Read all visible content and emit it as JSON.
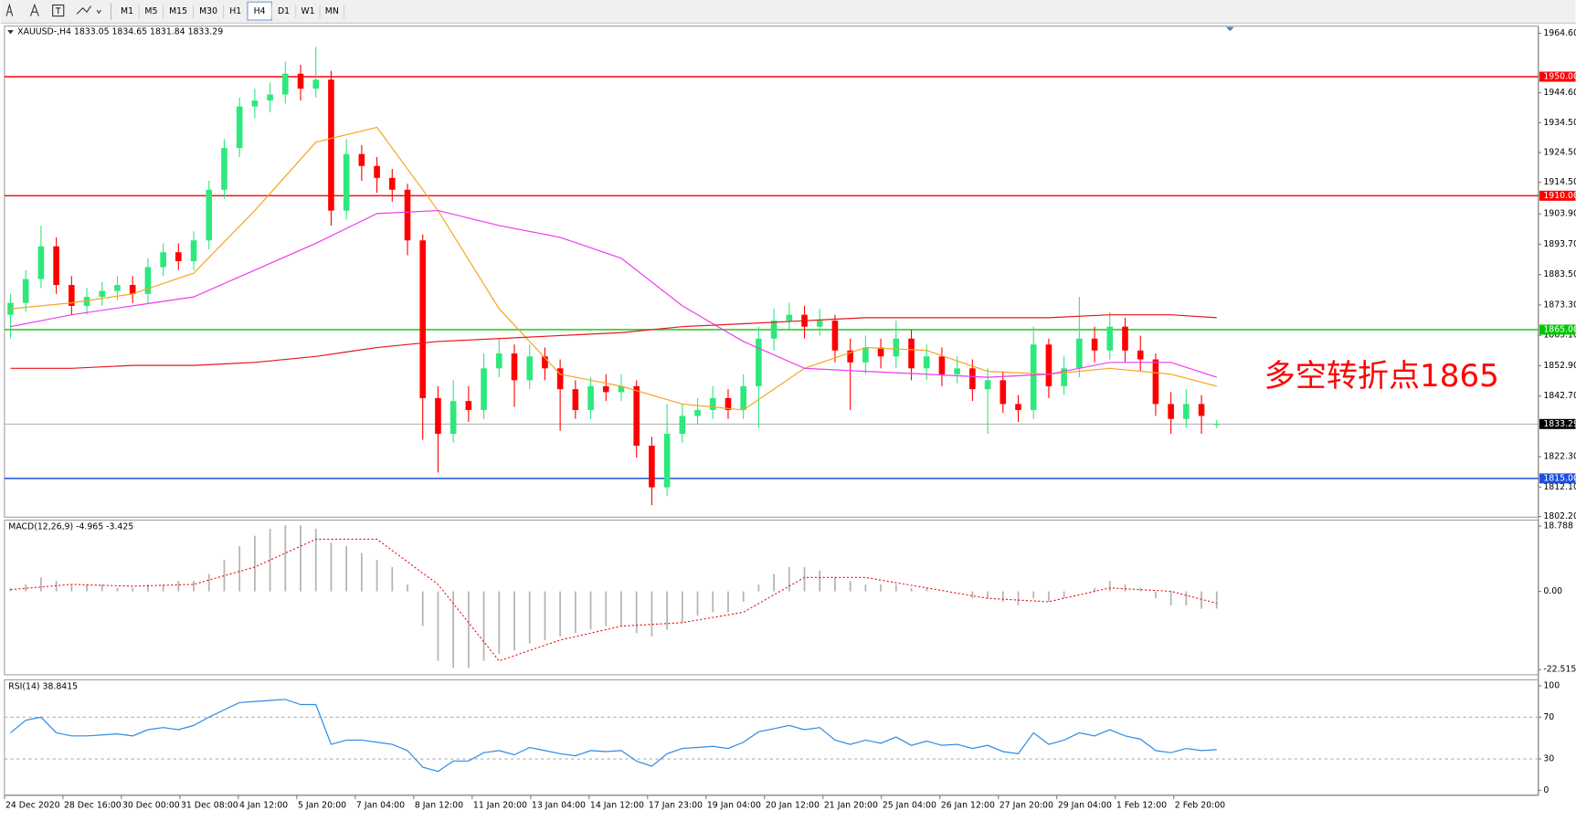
{
  "toolbar": {
    "timeframes": [
      "M1",
      "M5",
      "M15",
      "M30",
      "H1",
      "H4",
      "D1",
      "W1",
      "MN"
    ],
    "active": "H4"
  },
  "chart_data": [
    {
      "type": "candlestick",
      "title": "XAUUSD-,H4  1833.05 1834.65 1831.84 1833.29",
      "open": [
        1870,
        1874,
        1882,
        1893,
        1880,
        1873,
        1876,
        1878,
        1880,
        1877,
        1886,
        1891,
        1888,
        1895,
        1912,
        1926,
        1940,
        1942,
        1944,
        1951,
        1946,
        1949,
        1905,
        1924,
        1920,
        1916,
        1912,
        1895,
        1842,
        1830,
        1841,
        1838,
        1852,
        1857,
        1848,
        1856,
        1852,
        1845,
        1838,
        1846,
        1844,
        1846,
        1826,
        1812,
        1830,
        1836,
        1838,
        1842,
        1838,
        1846,
        1862,
        1868,
        1870,
        1866,
        1868,
        1858,
        1854,
        1859,
        1856,
        1862,
        1852,
        1856,
        1850,
        1852,
        1845,
        1848,
        1840,
        1838,
        1860,
        1846,
        1852,
        1862,
        1858,
        1866,
        1858,
        1855,
        1840,
        1835,
        1840,
        1833.05
      ],
      "high": [
        1877,
        1885,
        1900,
        1896,
        1883,
        1879,
        1881,
        1883,
        1883,
        1889,
        1894,
        1894,
        1898,
        1915,
        1929,
        1943,
        1946,
        1948,
        1955,
        1954,
        1960,
        1952,
        1929,
        1927,
        1923,
        1919,
        1914,
        1897,
        1846,
        1848,
        1846,
        1857,
        1862,
        1860,
        1860,
        1859,
        1855,
        1848,
        1849,
        1850,
        1850,
        1848,
        1829,
        1840,
        1840,
        1842,
        1846,
        1845,
        1850,
        1866,
        1872,
        1874,
        1873,
        1872,
        1870,
        1862,
        1863,
        1862,
        1868,
        1865,
        1860,
        1859,
        1856,
        1855,
        1852,
        1851,
        1843,
        1866,
        1862,
        1856,
        1876,
        1866,
        1871,
        1869,
        1863,
        1857,
        1844,
        1845,
        1843,
        1834.65
      ],
      "low": [
        1862,
        1871,
        1879,
        1877,
        1870,
        1870,
        1873,
        1875,
        1874,
        1874,
        1883,
        1885,
        1885,
        1892,
        1909,
        1923,
        1936,
        1938,
        1941,
        1942,
        1943,
        1900,
        1902,
        1915,
        1911,
        1908,
        1890,
        1828,
        1817,
        1827,
        1834,
        1835,
        1849,
        1839,
        1845,
        1848,
        1831,
        1835,
        1835,
        1841,
        1841,
        1822,
        1806,
        1809,
        1827,
        1833,
        1835,
        1835,
        1835,
        1832,
        1858,
        1865,
        1862,
        1863,
        1854,
        1838,
        1850,
        1852,
        1852,
        1848,
        1848,
        1846,
        1847,
        1841,
        1830,
        1837,
        1834,
        1835,
        1842,
        1843,
        1849,
        1854,
        1855,
        1854,
        1851,
        1836,
        1830,
        1832,
        1830,
        1831.84
      ],
      "close": [
        1874,
        1882,
        1893,
        1880,
        1873,
        1876,
        1878,
        1880,
        1877,
        1886,
        1891,
        1888,
        1895,
        1912,
        1926,
        1940,
        1942,
        1944,
        1951,
        1946,
        1949,
        1905,
        1924,
        1920,
        1916,
        1912,
        1895,
        1842,
        1830,
        1841,
        1838,
        1852,
        1857,
        1848,
        1856,
        1852,
        1845,
        1838,
        1846,
        1844,
        1846,
        1826,
        1812,
        1830,
        1836,
        1838,
        1842,
        1838,
        1846,
        1862,
        1868,
        1870,
        1866,
        1868,
        1858,
        1854,
        1859,
        1856,
        1862,
        1852,
        1856,
        1850,
        1852,
        1845,
        1848,
        1840,
        1838,
        1860,
        1846,
        1852,
        1862,
        1858,
        1866,
        1858,
        1855,
        1840,
        1835,
        1840,
        1836,
        1833.29
      ],
      "up_color": "#2de87c",
      "down_color": "#ff0000",
      "ma_x": [
        0,
        4,
        8,
        12,
        16,
        20,
        24,
        28,
        32,
        36,
        40,
        44,
        48,
        52,
        56,
        60,
        64,
        68,
        72,
        76,
        79
      ],
      "moving_averages": [
        {
          "color": "#f5a623",
          "values": [
            1872,
            1874,
            1877,
            1884,
            1905,
            1928,
            1933,
            1905,
            1872,
            1850,
            1846,
            1840,
            1838,
            1852,
            1859,
            1858,
            1851,
            1850,
            1852,
            1850,
            1846
          ]
        },
        {
          "color": "#ee3cee",
          "values": [
            1866,
            1870,
            1873,
            1876,
            1885,
            1894,
            1904,
            1905,
            1900,
            1896,
            1889,
            1873,
            1861,
            1852,
            1851,
            1850,
            1849,
            1850,
            1854,
            1854,
            1849
          ]
        },
        {
          "color": "#e8161b",
          "values": [
            1852,
            1852,
            1853,
            1853,
            1854,
            1856,
            1859,
            1861,
            1862,
            1863,
            1864,
            1866,
            1867,
            1868,
            1869,
            1869,
            1869,
            1869,
            1870,
            1870,
            1869
          ]
        }
      ],
      "levels": [
        {
          "value": 1950,
          "label": "1950.00",
          "color": "#ff0000"
        },
        {
          "value": 1910,
          "label": "1910.00",
          "color": "#ff0000"
        },
        {
          "value": 1865,
          "label": "1865.00",
          "color": "#00c800"
        },
        {
          "value": 1815,
          "label": "1815.00",
          "color": "#1e50dc"
        }
      ],
      "current_price": 1833.29,
      "annotation": {
        "text": "多空转折点1865",
        "color": "#ff0000"
      },
      "ylim": [
        1802,
        1967
      ],
      "yticks": [
        {
          "value": 1964.6,
          "label": "1964.60"
        },
        {
          "value": 1944.6,
          "label": "1944.60"
        },
        {
          "value": 1934.5,
          "label": "1934.50"
        },
        {
          "value": 1924.5,
          "label": "1924.50"
        },
        {
          "value": 1914.5,
          "label": "1914.50"
        },
        {
          "value": 1903.9,
          "label": "1903.90"
        },
        {
          "value": 1893.7,
          "label": "1893.70"
        },
        {
          "value": 1883.5,
          "label": "1883.50"
        },
        {
          "value": 1873.3,
          "label": "1873.30"
        },
        {
          "value": 1863.1,
          "label": "1863.10"
        },
        {
          "value": 1852.9,
          "label": "1852.90"
        },
        {
          "value": 1842.7,
          "label": "1842.70"
        },
        {
          "value": 1822.3,
          "label": "1822.30"
        },
        {
          "value": 1812.1,
          "label": "1812.10"
        },
        {
          "value": 1802.2,
          "label": "1802.20"
        }
      ]
    },
    {
      "type": "macd",
      "title": "MACD(12,26,9) -4.965 -3.425",
      "histogram": [
        1,
        2,
        4,
        3,
        2,
        2,
        2,
        1,
        1,
        2,
        2,
        3,
        3,
        5,
        9,
        13,
        16,
        18,
        19,
        19,
        18,
        14,
        13,
        11,
        9,
        7,
        2,
        -10,
        -20,
        -22,
        -22,
        -20,
        -18,
        -17,
        -15,
        -14,
        -13,
        -12,
        -11,
        -10,
        -10,
        -12,
        -13,
        -11,
        -9,
        -7,
        -6,
        -6,
        -3,
        2,
        5,
        7,
        7,
        6,
        4,
        3,
        2,
        2,
        2,
        1,
        1,
        0,
        0,
        -2,
        -2,
        -3,
        -4,
        -2,
        -3,
        -2,
        0,
        1,
        3,
        2,
        1,
        -2,
        -4,
        -4,
        -5,
        -4.965
      ],
      "histogram_color": "#b4b4b4",
      "signal": [
        0.5,
        2,
        1.5,
        2,
        7,
        15,
        15,
        2,
        -20,
        -14,
        -10,
        -9,
        -6,
        4,
        4,
        1,
        -2,
        -3,
        1,
        0,
        -3.425
      ],
      "signal_color": "#e8161b",
      "ylim": [
        -24,
        20.5
      ],
      "yticks": [
        18.788,
        {
          "value": 0,
          "label": "0.00"
        },
        -22.515
      ]
    },
    {
      "type": "line",
      "title": "RSI(14) 38.8415",
      "values": [
        55,
        67,
        70,
        55,
        52,
        52,
        53,
        54,
        52,
        58,
        60,
        58,
        62,
        70,
        77,
        84,
        85,
        86,
        87,
        82,
        82,
        44,
        48,
        48,
        46,
        44,
        38,
        22,
        18,
        28,
        28,
        36,
        38,
        34,
        41,
        38,
        35,
        33,
        38,
        37,
        38,
        28,
        23,
        35,
        40,
        41,
        42,
        40,
        46,
        56,
        59,
        62,
        58,
        60,
        48,
        44,
        48,
        45,
        51,
        43,
        47,
        43,
        44,
        40,
        43,
        37,
        35,
        55,
        44,
        48,
        55,
        52,
        58,
        52,
        49,
        38,
        36,
        40,
        38,
        38.8415
      ],
      "color": "#2f8ae6",
      "levels": [
        70,
        30
      ],
      "ylim": [
        -4.8,
        105.8
      ],
      "yticks": [
        100,
        70,
        30,
        0
      ],
      "x_labels": [
        "24 Dec 2020",
        "28 Dec 16:00",
        "30 Dec 00:00",
        "31 Dec 08:00",
        "4 Jan 12:00",
        "5 Jan 20:00",
        "7 Jan 04:00",
        "8 Jan 12:00",
        "11 Jan 20:00",
        "13 Jan 04:00",
        "14 Jan 12:00",
        "17 Jan 23:00",
        "19 Jan 04:00",
        "20 Jan 12:00",
        "21 Jan 20:00",
        "25 Jan 04:00",
        "26 Jan 12:00",
        "27 Jan 20:00",
        "29 Jan 04:00",
        "1 Feb 12:00",
        "2 Feb 20:00"
      ]
    }
  ]
}
